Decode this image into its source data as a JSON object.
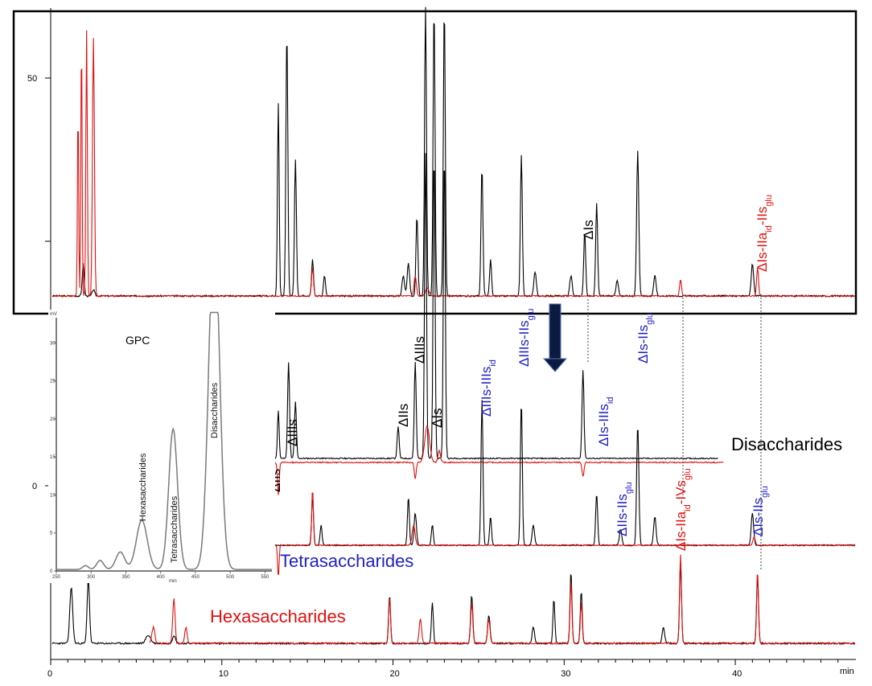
{
  "chart_data": {
    "type": "line",
    "main": {
      "xlabel": "min",
      "x_ticks": [
        "0",
        "10",
        "20",
        "30",
        "40"
      ],
      "xlim": [
        0,
        47
      ],
      "y_ticks": [
        "0",
        "50"
      ],
      "traces": [
        {
          "name": "Disaccharides",
          "color": "#000000",
          "level": 0
        },
        {
          "name": "Tetrasaccharides",
          "color": "#2a2acc",
          "level": 1
        },
        {
          "name": "Hexasaccharides",
          "color": "#e01010",
          "level": 2
        }
      ],
      "peak_labels": [
        {
          "text": "ΔIIs",
          "x": 13.3,
          "color": "#000000"
        },
        {
          "text": "ΔIIIs",
          "x": 14.0,
          "color": "#000000"
        },
        {
          "text": "ΔIIs",
          "x": 20.3,
          "color": "#000000"
        },
        {
          "text": "ΔIIIs",
          "x": 21.4,
          "color": "#000000"
        },
        {
          "text": "ΔIs",
          "x": 22.6,
          "color": "#000000"
        },
        {
          "text": "ΔIIIs-IIIs",
          "sub": "id",
          "x": 25.2,
          "color": "#2020c8"
        },
        {
          "text": "ΔIIIs-IIs",
          "sub": "glu",
          "x": 27.5,
          "color": "#2020c8"
        },
        {
          "text": "ΔIs-IIIs",
          "sub": "id",
          "x": 31.7,
          "color": "#2020c8"
        },
        {
          "text": "ΔIs",
          "x": 31.2,
          "color": "#000000"
        },
        {
          "text": "ΔIs-IIs",
          "sub": "glu",
          "x": 34.4,
          "color": "#2020c8"
        },
        {
          "text": "ΔIIs-IIs",
          "sub": "glu",
          "x": 32.0,
          "color": "#2020c8"
        },
        {
          "text": "ΔIs-IIa",
          "sub": "id",
          "tail": "-IVs",
          "sub2": "glu",
          "x": 36.8,
          "color": "#e01010"
        },
        {
          "text": "ΔIs-IIs",
          "sub": "glu",
          "x": 41.0,
          "color": "#2020c8"
        },
        {
          "text": "ΔIs-IIa",
          "sub": "id",
          "tail": "-IIs",
          "sub2": "glu",
          "x": 41.2,
          "color": "#e01010"
        }
      ],
      "trace_labels": {
        "di": "Disaccharides",
        "tetra": "Tetrasaccharides",
        "hexa": "Hexasaccharides"
      }
    },
    "inset": {
      "title": "GPC",
      "xlabel": "min",
      "x_ticks": [
        "250",
        "300",
        "350",
        "400",
        "450",
        "500",
        "550"
      ],
      "y_ticks": [
        "0",
        "5",
        "10",
        "15",
        "20",
        "25",
        "30"
      ],
      "ylabel_top": "mV",
      "peaks": [
        {
          "label": "Hexasaccharides",
          "x": 373,
          "y": 6.5
        },
        {
          "label": "Tetrasaccharides",
          "x": 418,
          "y": 18.5
        },
        {
          "label": "Disaccharides",
          "x": 477,
          "y": 33
        }
      ]
    }
  }
}
